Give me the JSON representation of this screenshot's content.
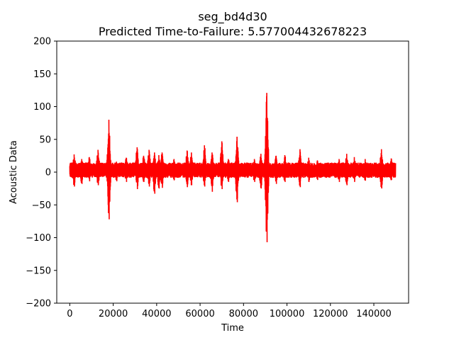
{
  "chart_data": {
    "type": "line",
    "title": "seg_bd4d30",
    "subtitle": "Predicted Time-to-Failure: 5.577004432678223",
    "xlabel": "Time",
    "ylabel": "Acoustic Data",
    "xlim": [
      -6000,
      156000
    ],
    "ylim": [
      -200,
      200
    ],
    "x_ticks": [
      0,
      20000,
      40000,
      60000,
      80000,
      100000,
      120000,
      140000
    ],
    "x_tick_labels": [
      "0",
      "20000",
      "40000",
      "60000",
      "80000",
      "100000",
      "120000",
      "140000"
    ],
    "y_ticks": [
      -200,
      -150,
      -100,
      -50,
      0,
      50,
      100,
      150,
      200
    ],
    "y_tick_labels": [
      "−200",
      "−150",
      "−100",
      "−50",
      "0",
      "50",
      "100",
      "150",
      "200"
    ],
    "grid": false,
    "series": [
      {
        "color": "#ff0000",
        "x_range": [
          0,
          150000
        ],
        "baseline_band": [
          -8,
          14
        ],
        "spikes": [
          {
            "x": 2000,
            "high": 27,
            "low": -22
          },
          {
            "x": 5500,
            "high": 20,
            "low": -18
          },
          {
            "x": 9000,
            "high": 23,
            "low": -14
          },
          {
            "x": 13000,
            "high": 34,
            "low": -20
          },
          {
            "x": 18000,
            "high": 80,
            "low": -72
          },
          {
            "x": 21500,
            "high": 16,
            "low": -14
          },
          {
            "x": 26000,
            "high": 22,
            "low": -15
          },
          {
            "x": 31000,
            "high": 38,
            "low": -26
          },
          {
            "x": 34000,
            "high": 25,
            "low": -15
          },
          {
            "x": 36500,
            "high": 34,
            "low": -22
          },
          {
            "x": 39000,
            "high": 30,
            "low": -33
          },
          {
            "x": 41000,
            "high": 26,
            "low": -25
          },
          {
            "x": 42500,
            "high": 30,
            "low": -24
          },
          {
            "x": 48000,
            "high": 20,
            "low": -12
          },
          {
            "x": 54000,
            "high": 33,
            "low": -23
          },
          {
            "x": 56000,
            "high": 30,
            "low": -20
          },
          {
            "x": 62000,
            "high": 41,
            "low": -22
          },
          {
            "x": 65500,
            "high": 30,
            "low": -30
          },
          {
            "x": 70000,
            "high": 47,
            "low": -26
          },
          {
            "x": 73000,
            "high": 20,
            "low": -15
          },
          {
            "x": 77000,
            "high": 54,
            "low": -46
          },
          {
            "x": 85000,
            "high": 20,
            "low": -15
          },
          {
            "x": 88000,
            "high": 28,
            "low": -25
          },
          {
            "x": 90700,
            "high": 121,
            "low": -107
          },
          {
            "x": 95000,
            "high": 25,
            "low": -18
          },
          {
            "x": 99000,
            "high": 26,
            "low": -15
          },
          {
            "x": 106000,
            "high": 35,
            "low": -23
          },
          {
            "x": 110000,
            "high": 22,
            "low": -15
          },
          {
            "x": 114000,
            "high": 18,
            "low": -12
          },
          {
            "x": 124000,
            "high": 20,
            "low": -15
          },
          {
            "x": 127500,
            "high": 28,
            "low": -20
          },
          {
            "x": 131000,
            "high": 23,
            "low": -15
          },
          {
            "x": 136000,
            "high": 20,
            "low": -13
          },
          {
            "x": 143500,
            "high": 35,
            "low": -25
          },
          {
            "x": 148000,
            "high": 21,
            "low": -12
          }
        ]
      }
    ]
  }
}
